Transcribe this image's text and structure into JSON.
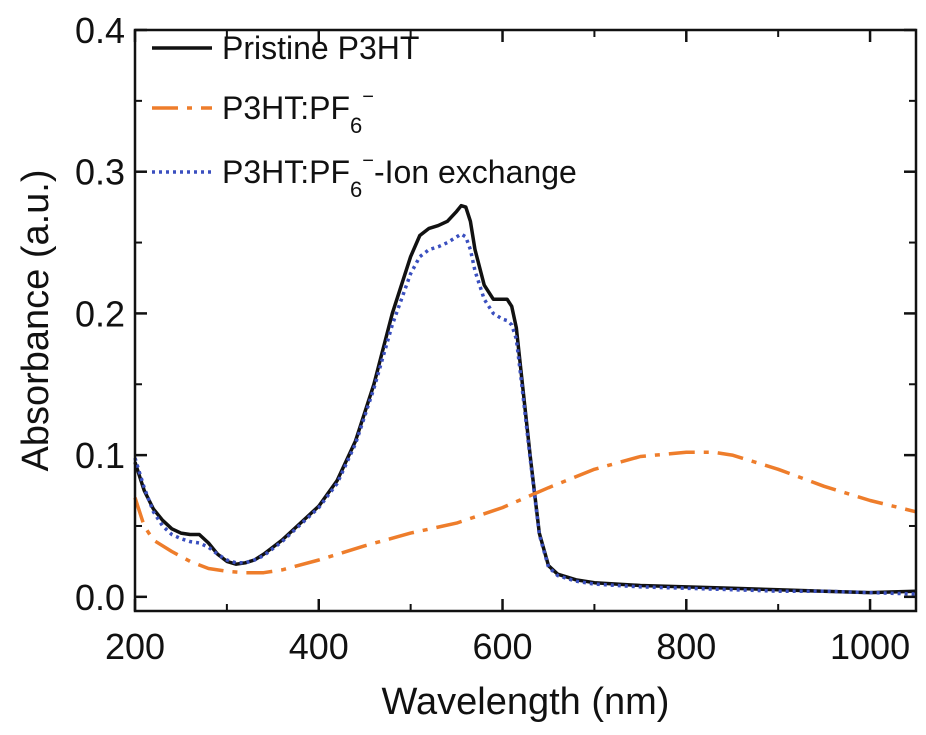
{
  "chart_data": {
    "type": "line",
    "xlabel": "Wavelength (nm)",
    "ylabel": "Absorbance (a.u.)",
    "xlim": [
      200,
      1050
    ],
    "ylim": [
      -0.01,
      0.4
    ],
    "xticks": [
      200,
      400,
      600,
      800,
      1000
    ],
    "xtick_labels": [
      "200",
      "400",
      "600",
      "800",
      "1000"
    ],
    "yticks": [
      0.0,
      0.1,
      0.2,
      0.3,
      0.4
    ],
    "ytick_labels": [
      "0.0",
      "0.1",
      "0.2",
      "0.3",
      "0.4"
    ],
    "grid": false,
    "legend_position": "top-left",
    "series": [
      {
        "name": "Pristine P3HT",
        "legend": {
          "main": "Pristine P3HT",
          "sub": "",
          "sup": "",
          "suffix": ""
        },
        "color": "#111111",
        "style": "solid",
        "x": [
          200,
          210,
          220,
          230,
          240,
          250,
          260,
          270,
          280,
          290,
          300,
          310,
          320,
          330,
          340,
          350,
          360,
          370,
          380,
          390,
          400,
          420,
          440,
          460,
          480,
          500,
          510,
          520,
          530,
          540,
          550,
          555,
          560,
          565,
          570,
          580,
          590,
          600,
          605,
          610,
          615,
          620,
          630,
          640,
          650,
          660,
          680,
          700,
          750,
          800,
          850,
          900,
          950,
          1000,
          1050
        ],
        "y": [
          0.095,
          0.075,
          0.062,
          0.054,
          0.048,
          0.045,
          0.044,
          0.044,
          0.038,
          0.03,
          0.025,
          0.023,
          0.024,
          0.026,
          0.03,
          0.035,
          0.04,
          0.046,
          0.052,
          0.058,
          0.064,
          0.082,
          0.11,
          0.15,
          0.2,
          0.24,
          0.255,
          0.26,
          0.262,
          0.265,
          0.272,
          0.276,
          0.275,
          0.265,
          0.245,
          0.22,
          0.21,
          0.21,
          0.21,
          0.205,
          0.19,
          0.16,
          0.1,
          0.045,
          0.022,
          0.016,
          0.012,
          0.01,
          0.008,
          0.007,
          0.006,
          0.005,
          0.004,
          0.003,
          0.004
        ]
      },
      {
        "name": "P3HT:PF6⁻",
        "legend": {
          "main": "P3HT:PF",
          "sub": "6",
          "sup": "−",
          "suffix": ""
        },
        "color": "#ee7d2b",
        "style": "dashdot",
        "x": [
          200,
          210,
          220,
          240,
          260,
          280,
          300,
          320,
          340,
          360,
          400,
          450,
          500,
          550,
          600,
          650,
          700,
          750,
          800,
          830,
          850,
          900,
          950,
          1000,
          1050
        ],
        "y": [
          0.07,
          0.05,
          0.04,
          0.032,
          0.025,
          0.02,
          0.018,
          0.017,
          0.017,
          0.019,
          0.026,
          0.036,
          0.045,
          0.052,
          0.063,
          0.077,
          0.09,
          0.099,
          0.102,
          0.102,
          0.1,
          0.09,
          0.078,
          0.068,
          0.06
        ]
      },
      {
        "name": "P3HT:PF6⁻-Ion exchange",
        "legend": {
          "main": "P3HT:PF",
          "sub": "6",
          "sup": "−",
          "suffix": "-Ion exchange"
        },
        "color": "#3a4fbf",
        "style": "dotted",
        "x": [
          200,
          210,
          220,
          230,
          240,
          250,
          260,
          270,
          280,
          290,
          300,
          310,
          320,
          330,
          340,
          350,
          360,
          370,
          380,
          390,
          400,
          420,
          440,
          460,
          480,
          500,
          510,
          520,
          530,
          540,
          550,
          555,
          560,
          565,
          570,
          580,
          590,
          600,
          605,
          610,
          615,
          620,
          630,
          640,
          650,
          660,
          680,
          700,
          750,
          800,
          850,
          900,
          950,
          1000,
          1050
        ],
        "y": [
          0.098,
          0.077,
          0.06,
          0.05,
          0.044,
          0.041,
          0.039,
          0.038,
          0.035,
          0.03,
          0.026,
          0.024,
          0.024,
          0.026,
          0.029,
          0.034,
          0.039,
          0.045,
          0.051,
          0.057,
          0.063,
          0.08,
          0.108,
          0.147,
          0.192,
          0.228,
          0.24,
          0.245,
          0.247,
          0.25,
          0.254,
          0.256,
          0.254,
          0.245,
          0.23,
          0.21,
          0.2,
          0.196,
          0.195,
          0.192,
          0.182,
          0.155,
          0.098,
          0.044,
          0.021,
          0.015,
          0.011,
          0.009,
          0.007,
          0.006,
          0.005,
          0.004,
          0.004,
          0.003,
          0.002
        ]
      }
    ]
  }
}
